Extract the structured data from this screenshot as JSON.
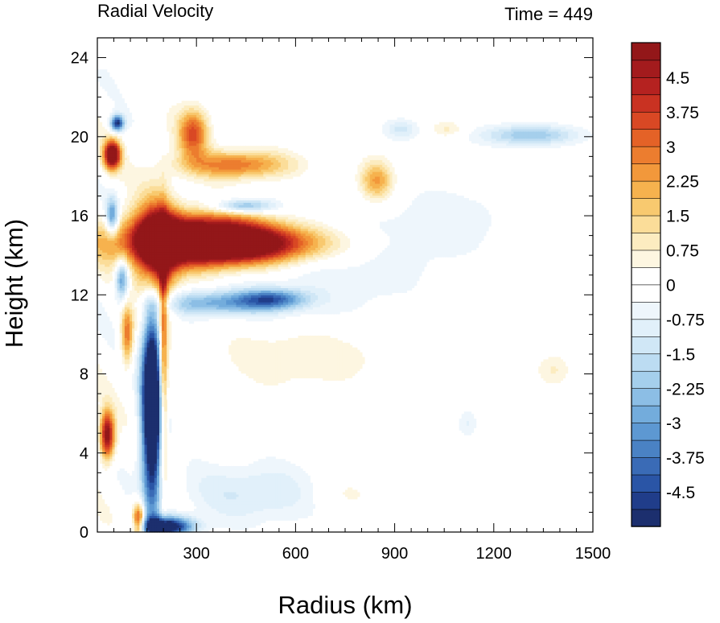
{
  "chart_data": {
    "type": "heatmap",
    "title": "Radial Velocity",
    "subtitle": "Time = 449",
    "xlabel": "Radius (km)",
    "ylabel": "Height (km)",
    "xlim": [
      0,
      1500
    ],
    "ylim": [
      0,
      25
    ],
    "xticks": [
      300,
      600,
      900,
      1200,
      1500
    ],
    "yticks": [
      0,
      4,
      8,
      12,
      16,
      20,
      24
    ],
    "colorbar": {
      "min": -5.25,
      "max": 5.25,
      "step": 0.375,
      "tick_labels": [
        "4.5",
        "3.75",
        "3",
        "2.25",
        "1.5",
        "0.75",
        "0",
        "-0.75",
        "-1.5",
        "-2.25",
        "-3",
        "-3.75",
        "-4.5"
      ],
      "colors": [
        "#1c2f6e",
        "#203d8a",
        "#2a55a6",
        "#3a6bb6",
        "#4a82c4",
        "#5d98d2",
        "#73acdc",
        "#8cbee5",
        "#a5cfec",
        "#bcdcf2",
        "#d0e7f6",
        "#e1f0fa",
        "#eef6fc",
        "#ffffff",
        "#ffffff",
        "#fdf6e1",
        "#fcecc0",
        "#fbdd99",
        "#f8c96f",
        "#f6b24e",
        "#f2983b",
        "#ec7d2f",
        "#e46227",
        "#d94824",
        "#c93222",
        "#b52220",
        "#a31b1d",
        "#931719"
      ]
    },
    "features": [
      {
        "r": 290,
        "z": 14.8,
        "sr": 230,
        "sz": 1.3,
        "v": 7.0
      },
      {
        "r": 460,
        "z": 14.6,
        "sr": 230,
        "sz": 0.9,
        "v": 4.5
      },
      {
        "r": 180,
        "z": 14.0,
        "sr": 55,
        "sz": 2.8,
        "v": 5.0
      },
      {
        "r": 355,
        "z": 11.6,
        "sr": 180,
        "sz": 0.6,
        "v": -2.6
      },
      {
        "r": 530,
        "z": 11.8,
        "sr": 100,
        "sz": 0.5,
        "v": -3.2
      },
      {
        "r": 165,
        "z": 6.5,
        "sr": 30,
        "sz": 5.0,
        "v": -8.5
      },
      {
        "r": 200,
        "z": 8.5,
        "sr": 12,
        "sz": 6.0,
        "v": 3.5
      },
      {
        "r": 210,
        "z": 0.3,
        "sr": 80,
        "sz": 0.5,
        "v": -6.0
      },
      {
        "r": 125,
        "z": 0.6,
        "sr": 18,
        "sz": 0.9,
        "v": 4.5
      },
      {
        "r": 45,
        "z": 19.1,
        "sr": 25,
        "sz": 0.7,
        "v": 6.5
      },
      {
        "r": 60,
        "z": 20.7,
        "sr": 20,
        "sz": 0.4,
        "v": -5.0
      },
      {
        "r": 30,
        "z": 4.9,
        "sr": 22,
        "sz": 1.2,
        "v": 5.5
      },
      {
        "r": 45,
        "z": 16.0,
        "sr": 18,
        "sz": 0.9,
        "v": -3.5
      },
      {
        "r": 75,
        "z": 12.8,
        "sr": 20,
        "sz": 1.0,
        "v": -3.5
      },
      {
        "r": 90,
        "z": 10.0,
        "sr": 18,
        "sz": 1.5,
        "v": 3.0
      },
      {
        "r": 420,
        "z": 18.6,
        "sr": 160,
        "sz": 0.7,
        "v": 3.0
      },
      {
        "r": 290,
        "z": 20.2,
        "sr": 45,
        "sz": 1.2,
        "v": 3.5
      },
      {
        "r": 440,
        "z": 16.5,
        "sr": 90,
        "sz": 0.35,
        "v": -2.8
      },
      {
        "r": 845,
        "z": 17.8,
        "sr": 50,
        "sz": 1.0,
        "v": 2.5
      },
      {
        "r": 1310,
        "z": 20.1,
        "sr": 140,
        "sz": 0.5,
        "v": -2.2
      },
      {
        "r": 920,
        "z": 20.4,
        "sr": 50,
        "sz": 0.5,
        "v": -1.2
      },
      {
        "r": 1060,
        "z": 20.4,
        "sr": 50,
        "sz": 0.4,
        "v": 0.9
      },
      {
        "r": 620,
        "z": 9.0,
        "sr": 260,
        "sz": 1.6,
        "v": 0.9
      },
      {
        "r": 1380,
        "z": 8.2,
        "sr": 50,
        "sz": 0.8,
        "v": 0.8
      },
      {
        "r": 1120,
        "z": 5.5,
        "sr": 30,
        "sz": 0.7,
        "v": -0.8
      },
      {
        "r": 650,
        "z": 13.0,
        "sr": 350,
        "sz": 3.5,
        "v": -0.6
      },
      {
        "r": 480,
        "z": 2.0,
        "sr": 220,
        "sz": 1.5,
        "v": -1.2
      },
      {
        "r": 1100,
        "z": 16.0,
        "sr": 300,
        "sz": 3.0,
        "v": -0.4
      },
      {
        "r": 750,
        "z": 2.0,
        "sr": 120,
        "sz": 1.0,
        "v": 0.6
      }
    ]
  }
}
